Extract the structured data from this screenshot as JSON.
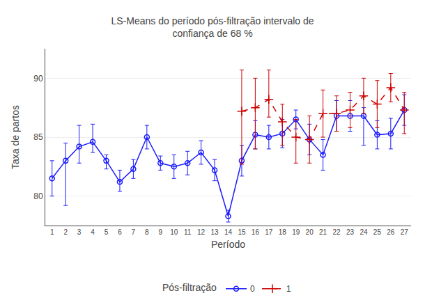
{
  "chart_data": {
    "type": "line",
    "title": "LS-Means do período pós-filtração intervalo de\nconfiança de 68 %",
    "xlabel": "Período",
    "ylabel": "Taxa de partos",
    "xlim": [
      0.5,
      27.5
    ],
    "ylim": [
      77.5,
      92.5
    ],
    "xticks": [
      1,
      2,
      3,
      4,
      5,
      6,
      7,
      8,
      9,
      10,
      11,
      12,
      13,
      14,
      15,
      16,
      17,
      18,
      19,
      20,
      21,
      22,
      23,
      24,
      25,
      26,
      27
    ],
    "yticks": [
      80,
      85,
      90
    ],
    "grid": true,
    "legend": "bottom",
    "legend_title": "Pós-filtração",
    "series": [
      {
        "name": "0",
        "color": "#1a1aff",
        "marker": "circle-open",
        "line_style": "solid",
        "x": [
          1,
          2,
          3,
          4,
          5,
          6,
          7,
          8,
          9,
          10,
          11,
          12,
          13,
          14,
          15,
          16,
          17,
          18,
          19,
          20,
          21,
          22,
          23,
          24,
          25,
          26,
          27
        ],
        "values": [
          81.5,
          83.0,
          84.2,
          84.6,
          83.0,
          81.2,
          82.3,
          85.0,
          82.8,
          82.5,
          82.8,
          83.7,
          82.2,
          78.3,
          83.0,
          85.2,
          85.0,
          85.3,
          86.5,
          84.8,
          83.5,
          86.8,
          86.8,
          86.8,
          85.2,
          85.3,
          87.3
        ],
        "error_low": [
          1.5,
          3.8,
          1.4,
          0.9,
          0.7,
          0.8,
          0.8,
          1.0,
          0.6,
          1.0,
          1.0,
          1.0,
          0.9,
          0.5,
          1.3,
          1.2,
          1.0,
          1.2,
          0.8,
          1.3,
          1.3,
          1.3,
          1.3,
          2.5,
          1.2,
          1.3,
          1.3
        ],
        "error_high": [
          1.5,
          1.5,
          1.8,
          1.5,
          0.5,
          1.0,
          0.8,
          1.0,
          0.6,
          1.0,
          1.0,
          1.0,
          0.9,
          0.5,
          1.3,
          1.2,
          1.0,
          1.2,
          0.8,
          1.3,
          1.3,
          1.3,
          1.3,
          0.7,
          1.2,
          1.3,
          1.3
        ]
      },
      {
        "name": "1",
        "color": "#cc0000",
        "marker": "plus",
        "line_style": "dash",
        "x": [
          15,
          16,
          17,
          18,
          19,
          20,
          21,
          22,
          23,
          24,
          25,
          26,
          27
        ],
        "values": [
          87.2,
          87.5,
          88.2,
          86.3,
          85.0,
          84.8,
          87.0,
          87.0,
          87.3,
          88.5,
          87.8,
          89.2,
          87.3
        ],
        "error_low": [
          4.5,
          3.5,
          1.5,
          2.0,
          2.2,
          2.0,
          2.0,
          1.5,
          1.5,
          1.5,
          2.0,
          1.2,
          2.0
        ],
        "error_high": [
          3.5,
          2.5,
          2.5,
          1.5,
          1.5,
          2.0,
          2.0,
          1.5,
          1.5,
          1.5,
          2.0,
          1.2,
          1.5
        ]
      }
    ]
  }
}
